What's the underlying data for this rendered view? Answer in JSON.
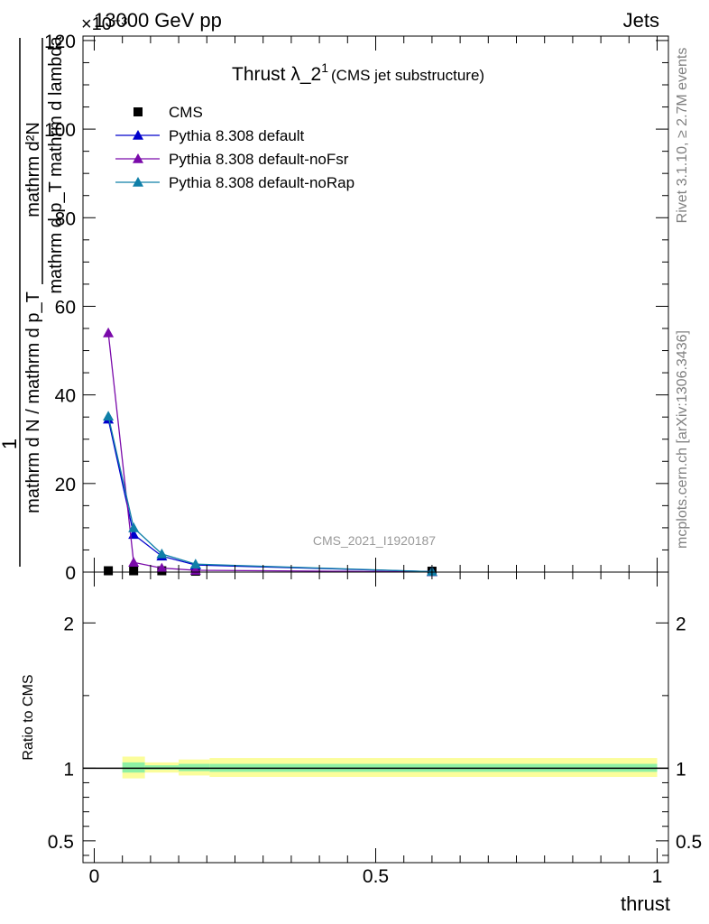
{
  "header": {
    "left": "13000 GeV pp",
    "right": "Jets",
    "multiplier": "×10⁻³"
  },
  "side_labels": {
    "rivet": "Rivet 3.1.10, ≥ 2.7M events",
    "mcplots": "mcplots.cern.ch [arXiv:1306.3436]"
  },
  "chart_data": {
    "type": "line",
    "title": "Thrust λ_2",
    "title_sup": "1",
    "subtitle": "(CMS jet substructure)",
    "watermark": "CMS_2021_I1920187",
    "xlabel": "thrust",
    "ylabel_numerator": "1",
    "ylabel_denominator": "mathrm d N / mathrm d p_T",
    "ylabel_upper": "mathrm d²N",
    "ylabel_lower": "mathrm d p_T mathrm d lambda",
    "ratio_ylabel": "Ratio to CMS",
    "xlim": [
      -0.02,
      1.02
    ],
    "ylim": [
      0,
      121
    ],
    "ratio_ylim": [
      0.35,
      2.35
    ],
    "x_ticks": [
      "0",
      "0.5",
      "1"
    ],
    "y_ticks": [
      "0",
      "20",
      "40",
      "60",
      "80",
      "100",
      "120"
    ],
    "ratio_ticks": [
      "0.5",
      "1",
      "2"
    ],
    "legend_position": "top-left",
    "series": [
      {
        "name": "CMS",
        "color": "#000000",
        "marker": "square",
        "x": [
          0.025,
          0.07,
          0.12,
          0.18,
          0.6
        ],
        "y": [
          0.3,
          0.3,
          0.3,
          0.2,
          0.2
        ]
      },
      {
        "name": "Pythia 8.308 default",
        "color": "#0000cc",
        "marker": "triangle",
        "x": [
          0.025,
          0.07,
          0.12,
          0.18,
          0.6
        ],
        "y": [
          34.5,
          8.5,
          3.6,
          1.6,
          0.1
        ]
      },
      {
        "name": "Pythia 8.308 default-noFsr",
        "color": "#7a0aaa",
        "marker": "triangle",
        "x": [
          0.025,
          0.07,
          0.12,
          0.18,
          0.6
        ],
        "y": [
          54,
          2.2,
          0.9,
          0.4,
          0.05
        ]
      },
      {
        "name": "Pythia 8.308 default-noRap",
        "color": "#0f7fa8",
        "marker": "triangle",
        "x": [
          0.025,
          0.07,
          0.12,
          0.18,
          0.6
        ],
        "y": [
          35.2,
          10.0,
          4.1,
          1.8,
          0.1
        ]
      }
    ],
    "ratio_bands": [
      {
        "x0": 0.05,
        "x1": 0.09,
        "yellow": [
          0.93,
          1.08
        ],
        "green": [
          0.97,
          1.04
        ]
      },
      {
        "x0": 0.09,
        "x1": 0.15,
        "yellow": [
          0.97,
          1.04
        ],
        "green": [
          0.99,
          1.02
        ]
      },
      {
        "x0": 0.15,
        "x1": 0.205,
        "yellow": [
          0.95,
          1.06
        ],
        "green": [
          0.98,
          1.03
        ]
      },
      {
        "x0": 0.205,
        "x1": 1.0,
        "yellow": [
          0.94,
          1.07
        ],
        "green": [
          0.975,
          1.03
        ]
      }
    ]
  }
}
